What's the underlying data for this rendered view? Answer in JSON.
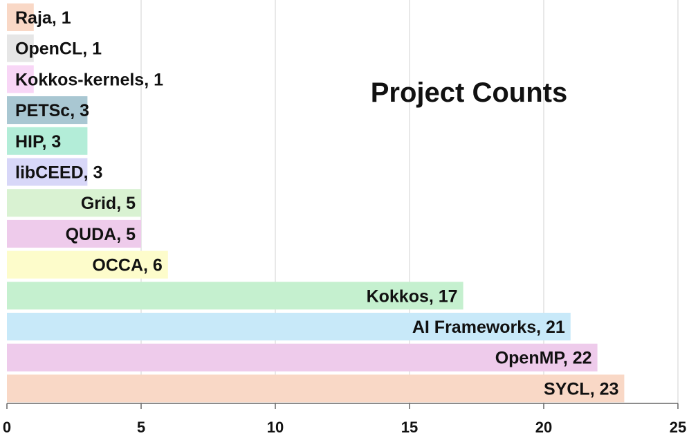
{
  "chart_data": {
    "type": "bar",
    "orientation": "horizontal",
    "title": "Project Counts",
    "xlim": [
      0,
      25
    ],
    "x_ticks": [
      0,
      5,
      10,
      15,
      20,
      25
    ],
    "grid": "vertical",
    "bars": [
      {
        "label": "Raja, 1",
        "value": 1,
        "color": "#f9d8c6"
      },
      {
        "label": "OpenCL, 1",
        "value": 1,
        "color": "#e6e6e6"
      },
      {
        "label": "Kokkos-kernels, 1",
        "value": 1,
        "color": "#f8d6f6"
      },
      {
        "label": "PETSc, 3",
        "value": 3,
        "color": "#a9c7d2"
      },
      {
        "label": "HIP, 3",
        "value": 3,
        "color": "#b3edd8"
      },
      {
        "label": "libCEED, 3",
        "value": 3,
        "color": "#d8d7f8"
      },
      {
        "label": "Grid, 5",
        "value": 5,
        "color": "#d9f2d2"
      },
      {
        "label": "QUDA, 5",
        "value": 5,
        "color": "#eecbeb"
      },
      {
        "label": "OCCA, 6",
        "value": 6,
        "color": "#fdfccb"
      },
      {
        "label": "Kokkos, 17",
        "value": 17,
        "color": "#c5f0cf"
      },
      {
        "label": "AI Frameworks, 21",
        "value": 21,
        "color": "#c8e9f9"
      },
      {
        "label": "OpenMP, 22",
        "value": 22,
        "color": "#eecbeb"
      },
      {
        "label": "SYCL, 23",
        "value": 23,
        "color": "#f9d8c6"
      }
    ]
  }
}
